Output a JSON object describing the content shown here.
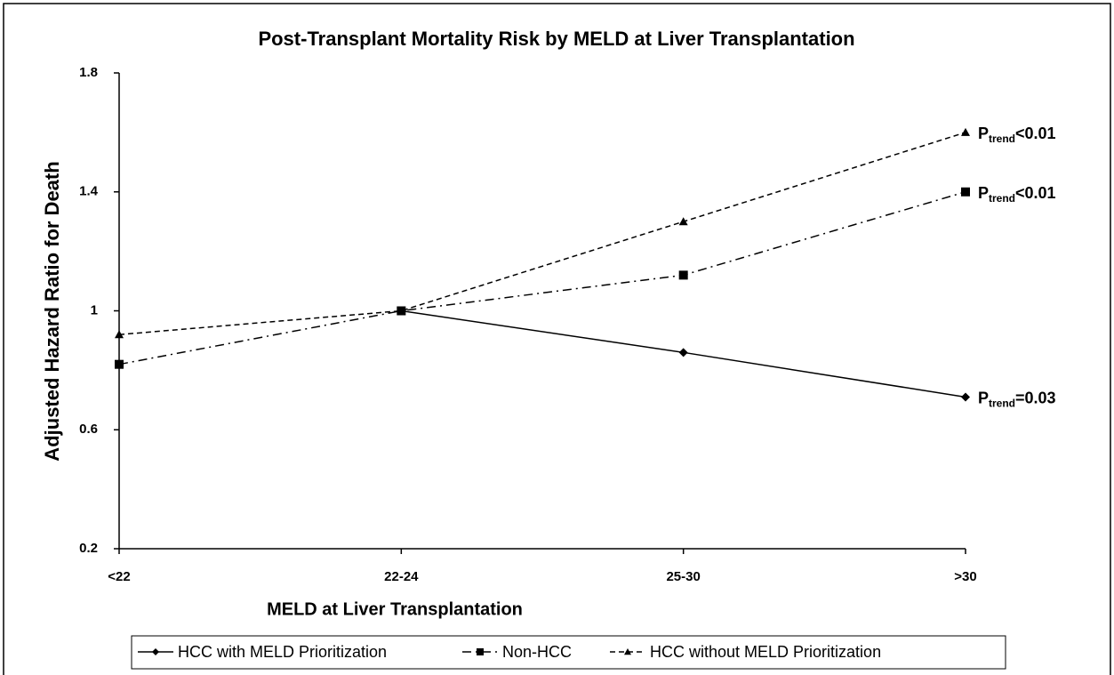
{
  "chart_data": {
    "type": "line",
    "title": "Post-Transplant Mortality Risk by MELD at Liver Transplantation",
    "x_label": "MELD at Liver Transplantation",
    "y_label": "Adjusted Hazard Ratio for Death",
    "categories": [
      "<22",
      "22-24",
      "25-30",
      ">30"
    ],
    "ylim": [
      0.2,
      1.8
    ],
    "yticks": [
      0.2,
      0.6,
      1,
      1.4,
      1.8
    ],
    "legend": "bottom",
    "series": [
      {
        "name": "HCC with MELD Prioritization",
        "color": "#000000",
        "dash": "solid",
        "marker": "diamond",
        "values": [
          null,
          1,
          0.86,
          0.71
        ]
      },
      {
        "name": "Non-HCC",
        "color": "#000000",
        "dash": "dashdot",
        "marker": "square",
        "values": [
          0.82,
          1,
          1.12,
          1.4
        ]
      },
      {
        "name": "HCC without MELD Prioritization",
        "color": "#000000",
        "dash": "dashed",
        "marker": "triangle",
        "values": [
          0.92,
          1,
          1.3,
          1.6
        ]
      }
    ],
    "annotations": [
      {
        "main": "P",
        "sub": "trend",
        "tail": "=0.03"
      },
      {
        "main": "P",
        "sub": "trend",
        "tail": "<0.01"
      },
      {
        "main": "P",
        "sub": "trend",
        "tail": "<0.01"
      }
    ]
  }
}
